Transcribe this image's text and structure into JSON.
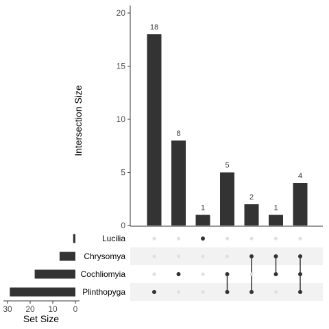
{
  "chart_data": [
    {
      "type": "bar",
      "name": "intersections",
      "ylabel": "Intersection Size",
      "ylim": [
        0,
        20
      ],
      "yticks": [
        0,
        5,
        10,
        15,
        20
      ],
      "values": [
        18,
        8,
        1,
        5,
        2,
        1,
        4
      ],
      "data_labels": [
        "18",
        "8",
        "1",
        "5",
        "2",
        "1",
        "4"
      ],
      "membership": [
        [
          "Plinthopyga"
        ],
        [
          "Cochliomyia"
        ],
        [
          "Lucilia"
        ],
        [
          "Cochliomyia",
          "Plinthopyga"
        ],
        [
          "Chrysomya",
          "Plinthopyga"
        ],
        [
          "Chrysomya",
          "Cochliomyia"
        ],
        [
          "Chrysomya",
          "Cochliomyia",
          "Plinthopyga"
        ]
      ],
      "bar_color": "#333333"
    },
    {
      "type": "bar",
      "name": "set-sizes",
      "orientation": "horizontal",
      "xlabel": "Set Size",
      "xlim": [
        0,
        30
      ],
      "xticks": [
        30,
        20,
        10,
        0
      ],
      "sets": [
        "Lucilia",
        "Chrysomya",
        "Cochliomyia",
        "Plinthopyga"
      ],
      "values": [
        1,
        7,
        18,
        29
      ],
      "bar_color": "#333333"
    }
  ],
  "colors": {
    "bar": "#333333",
    "dot_active": "#333333",
    "dot_inactive": "#e0e0e0",
    "stripe": "#f2f2f2"
  }
}
